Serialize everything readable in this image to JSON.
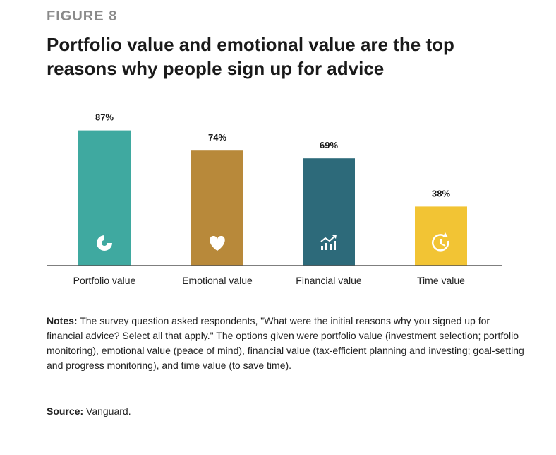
{
  "figure_label": "FIGURE 8",
  "title": "Portfolio value and emotional value are the top reasons why people sign up for advice",
  "notes_label": "Notes:",
  "notes_text": "The survey question asked respondents, \"What were the initial reasons why you signed up for financial advice? Select all that apply.\" The options given were portfolio value (investment selection; portfolio monitoring), emotional value (peace of mind), financial value (tax-efficient planning and investing; goal-setting and progress monitoring), and time value (to save time).",
  "source_label": "Source:",
  "source_text": "Vanguard.",
  "chart_data": {
    "type": "bar",
    "categories": [
      "Portfolio value",
      "Emotional value",
      "Financial value",
      "Time value"
    ],
    "values": [
      87,
      74,
      69,
      38
    ],
    "value_labels": [
      "87%",
      "74%",
      "69%",
      "38%"
    ],
    "colors": [
      "#3fa9a0",
      "#b8893a",
      "#2d6a7a",
      "#f2c434"
    ],
    "icons": [
      "pie-chart-icon",
      "heart-icon",
      "growth-chart-icon",
      "clock-icon"
    ],
    "ylim": [
      0,
      100
    ],
    "grid": false
  }
}
